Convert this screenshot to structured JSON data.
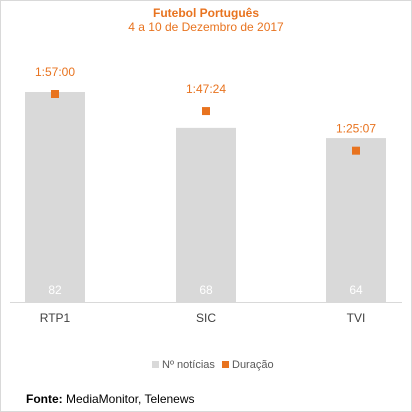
{
  "chart_data": {
    "type": "bar",
    "title": "Futebol Português",
    "subtitle": "4 a 10 de Dezembro de 2017",
    "categories": [
      "RTP1",
      "SIC",
      "TVI"
    ],
    "series": [
      {
        "name": "Nº notícias",
        "type": "bar",
        "values": [
          82,
          68,
          64
        ],
        "color": "#d9d9d9",
        "labels": [
          "82",
          "68",
          "64"
        ]
      },
      {
        "name": "Duração",
        "type": "marker",
        "values": [
          "1:57:00",
          "1:47:24",
          "1:25:07"
        ],
        "values_seconds": [
          7020,
          6444,
          5107
        ],
        "color": "#e8731f",
        "labels": [
          "1:57:00",
          "1:47:24",
          "1:25:07"
        ]
      }
    ],
    "legend_position": "bottom",
    "grid": false
  },
  "source": {
    "prefix": "Fonte:",
    "text": " MediaMonitor, Telenews"
  }
}
